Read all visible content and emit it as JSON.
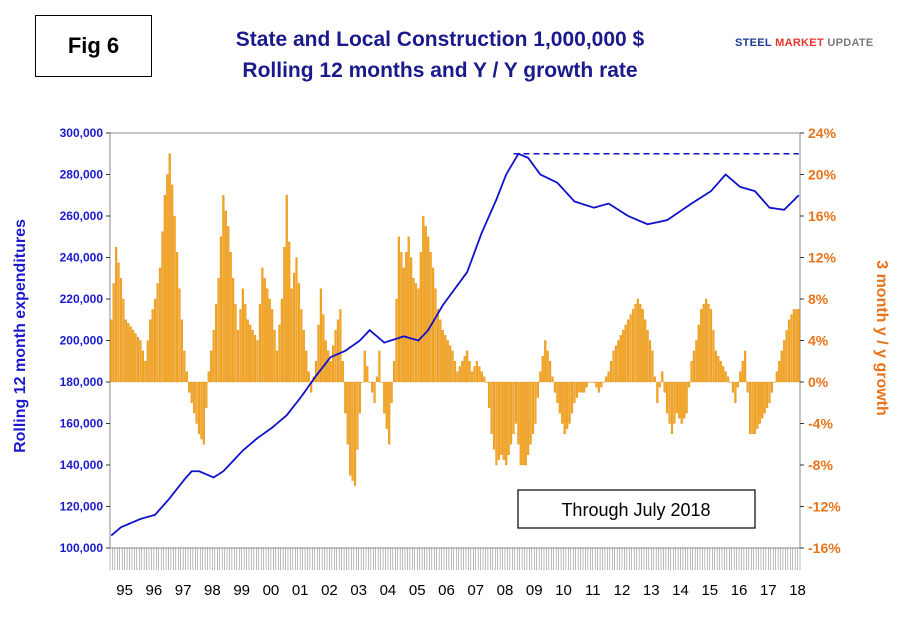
{
  "figure_label": "Fig 6",
  "title_line1": "State and Local Construction 1,000,000 $",
  "title_line2": "Rolling 12 months and Y / Y growth rate",
  "logo": {
    "part1": "STEEL ",
    "part2": "MARKET",
    "part3": " UPDATE"
  },
  "colors": {
    "line": "#1111cc",
    "bars": "#f5a623",
    "bar_edge": "#d9850a",
    "left_axis": "#1a1acc",
    "right_axis": "#e8731a"
  },
  "chart_data": {
    "type": "bar+line",
    "title": "State and Local Construction 1,000,000 $ / Rolling 12 months and Y / Y growth rate",
    "annotation": "Through July 2018",
    "left_axis": {
      "label": "Rolling 12 month expenditures",
      "range": [
        100000,
        300000
      ],
      "ticks": [
        "300,000",
        "280,000",
        "260,000",
        "240,000",
        "220,000",
        "200,000",
        "180,000",
        "160,000",
        "140,000",
        "120,000",
        "100,000"
      ]
    },
    "right_axis": {
      "label": "3 month y / y growth",
      "range": [
        -16,
        24
      ],
      "ticks": [
        "24%",
        "20%",
        "16%",
        "12%",
        "8%",
        "4%",
        "0%",
        "-4%",
        "-8%",
        "-12%",
        "-16%"
      ]
    },
    "x_axis": {
      "start_month": "1995-01",
      "months": 283,
      "year_labels": [
        "95",
        "96",
        "97",
        "98",
        "99",
        "00",
        "01",
        "02",
        "03",
        "04",
        "05",
        "06",
        "07",
        "08",
        "09",
        "10",
        "11",
        "12",
        "13",
        "14",
        "15",
        "16",
        "17",
        "18"
      ]
    },
    "dashed_reference": {
      "value": 290000,
      "from_month_index": 165,
      "to_month_index": 282
    },
    "series": [
      {
        "name": "Rolling 12 month expenditures",
        "type": "line",
        "axis": "left",
        "anchors": [
          [
            0,
            106000
          ],
          [
            4,
            110000
          ],
          [
            12,
            114000
          ],
          [
            18,
            116000
          ],
          [
            24,
            124000
          ],
          [
            30,
            133000
          ],
          [
            33,
            137000
          ],
          [
            36,
            137000
          ],
          [
            42,
            134000
          ],
          [
            46,
            137000
          ],
          [
            54,
            147000
          ],
          [
            60,
            153000
          ],
          [
            66,
            158000
          ],
          [
            72,
            164000
          ],
          [
            78,
            173000
          ],
          [
            84,
            183000
          ],
          [
            90,
            192000
          ],
          [
            96,
            195000
          ],
          [
            102,
            200000
          ],
          [
            106,
            205000
          ],
          [
            112,
            199000
          ],
          [
            120,
            202000
          ],
          [
            126,
            200000
          ],
          [
            130,
            205000
          ],
          [
            136,
            217000
          ],
          [
            146,
            233000
          ],
          [
            152,
            252000
          ],
          [
            158,
            268000
          ],
          [
            162,
            280000
          ],
          [
            167,
            290000
          ],
          [
            171,
            288000
          ],
          [
            176,
            280000
          ],
          [
            183,
            276000
          ],
          [
            190,
            267000
          ],
          [
            198,
            264000
          ],
          [
            204,
            266000
          ],
          [
            212,
            260000
          ],
          [
            220,
            256000
          ],
          [
            228,
            258000
          ],
          [
            238,
            266000
          ],
          [
            246,
            272000
          ],
          [
            252,
            280000
          ],
          [
            258,
            274000
          ],
          [
            264,
            272000
          ],
          [
            270,
            264000
          ],
          [
            276,
            263000
          ],
          [
            282,
            270000
          ]
        ]
      },
      {
        "name": "3 month y / y growth",
        "type": "bar",
        "axis": "right",
        "anchors": [
          [
            0,
            6
          ],
          [
            2,
            13
          ],
          [
            4,
            10
          ],
          [
            6,
            6
          ],
          [
            9,
            5
          ],
          [
            12,
            4
          ],
          [
            14,
            2
          ],
          [
            16,
            6
          ],
          [
            18,
            8
          ],
          [
            20,
            11
          ],
          [
            22,
            18
          ],
          [
            24,
            22
          ],
          [
            26,
            16
          ],
          [
            28,
            9
          ],
          [
            30,
            3
          ],
          [
            32,
            -1
          ],
          [
            34,
            -3
          ],
          [
            36,
            -5
          ],
          [
            38,
            -6
          ],
          [
            40,
            1
          ],
          [
            42,
            5
          ],
          [
            44,
            10
          ],
          [
            46,
            18
          ],
          [
            48,
            15
          ],
          [
            50,
            10
          ],
          [
            52,
            5
          ],
          [
            54,
            9
          ],
          [
            56,
            6
          ],
          [
            58,
            5
          ],
          [
            60,
            4
          ],
          [
            62,
            11
          ],
          [
            64,
            9
          ],
          [
            66,
            7
          ],
          [
            68,
            3
          ],
          [
            70,
            8
          ],
          [
            72,
            18
          ],
          [
            74,
            9
          ],
          [
            76,
            12
          ],
          [
            78,
            7
          ],
          [
            80,
            3
          ],
          [
            82,
            -1
          ],
          [
            84,
            2
          ],
          [
            86,
            9
          ],
          [
            88,
            4
          ],
          [
            90,
            2
          ],
          [
            92,
            5
          ],
          [
            94,
            7
          ],
          [
            96,
            -3
          ],
          [
            98,
            -9
          ],
          [
            100,
            -10
          ],
          [
            102,
            -3
          ],
          [
            104,
            3
          ],
          [
            106,
            0
          ],
          [
            108,
            -2
          ],
          [
            110,
            3
          ],
          [
            112,
            -3
          ],
          [
            114,
            -6
          ],
          [
            116,
            2
          ],
          [
            118,
            14
          ],
          [
            120,
            11
          ],
          [
            122,
            14
          ],
          [
            124,
            10
          ],
          [
            126,
            9
          ],
          [
            128,
            16
          ],
          [
            130,
            14
          ],
          [
            132,
            11
          ],
          [
            134,
            7
          ],
          [
            136,
            5
          ],
          [
            138,
            4
          ],
          [
            140,
            3
          ],
          [
            142,
            1
          ],
          [
            144,
            2
          ],
          [
            146,
            3
          ],
          [
            148,
            1
          ],
          [
            150,
            2
          ],
          [
            152,
            1
          ],
          [
            154,
            0
          ],
          [
            156,
            -5
          ],
          [
            158,
            -8
          ],
          [
            160,
            -7
          ],
          [
            162,
            -8
          ],
          [
            164,
            -6
          ],
          [
            166,
            -4
          ],
          [
            168,
            -8
          ],
          [
            170,
            -8
          ],
          [
            172,
            -6
          ],
          [
            174,
            -4
          ],
          [
            176,
            1
          ],
          [
            178,
            4
          ],
          [
            180,
            2
          ],
          [
            182,
            -1
          ],
          [
            184,
            -3
          ],
          [
            186,
            -5
          ],
          [
            188,
            -4
          ],
          [
            190,
            -2
          ],
          [
            192,
            -1
          ],
          [
            194,
            -1
          ],
          [
            196,
            0
          ],
          [
            198,
            0
          ],
          [
            200,
            -1
          ],
          [
            202,
            0
          ],
          [
            204,
            1
          ],
          [
            206,
            3
          ],
          [
            208,
            4
          ],
          [
            210,
            5
          ],
          [
            212,
            6
          ],
          [
            214,
            7
          ],
          [
            216,
            8
          ],
          [
            218,
            7
          ],
          [
            220,
            5
          ],
          [
            222,
            3
          ],
          [
            224,
            -2
          ],
          [
            226,
            1
          ],
          [
            228,
            -3
          ],
          [
            230,
            -5
          ],
          [
            232,
            -3
          ],
          [
            234,
            -4
          ],
          [
            236,
            -3
          ],
          [
            238,
            2
          ],
          [
            240,
            4
          ],
          [
            242,
            7
          ],
          [
            244,
            8
          ],
          [
            246,
            7
          ],
          [
            248,
            3
          ],
          [
            250,
            2
          ],
          [
            252,
            1
          ],
          [
            254,
            0
          ],
          [
            256,
            -2
          ],
          [
            258,
            1
          ],
          [
            260,
            3
          ],
          [
            262,
            -5
          ],
          [
            264,
            -5
          ],
          [
            266,
            -4
          ],
          [
            268,
            -3
          ],
          [
            270,
            -2
          ],
          [
            272,
            0
          ],
          [
            274,
            2
          ],
          [
            276,
            4
          ],
          [
            278,
            6
          ],
          [
            280,
            7
          ],
          [
            282,
            7
          ]
        ]
      }
    ]
  }
}
